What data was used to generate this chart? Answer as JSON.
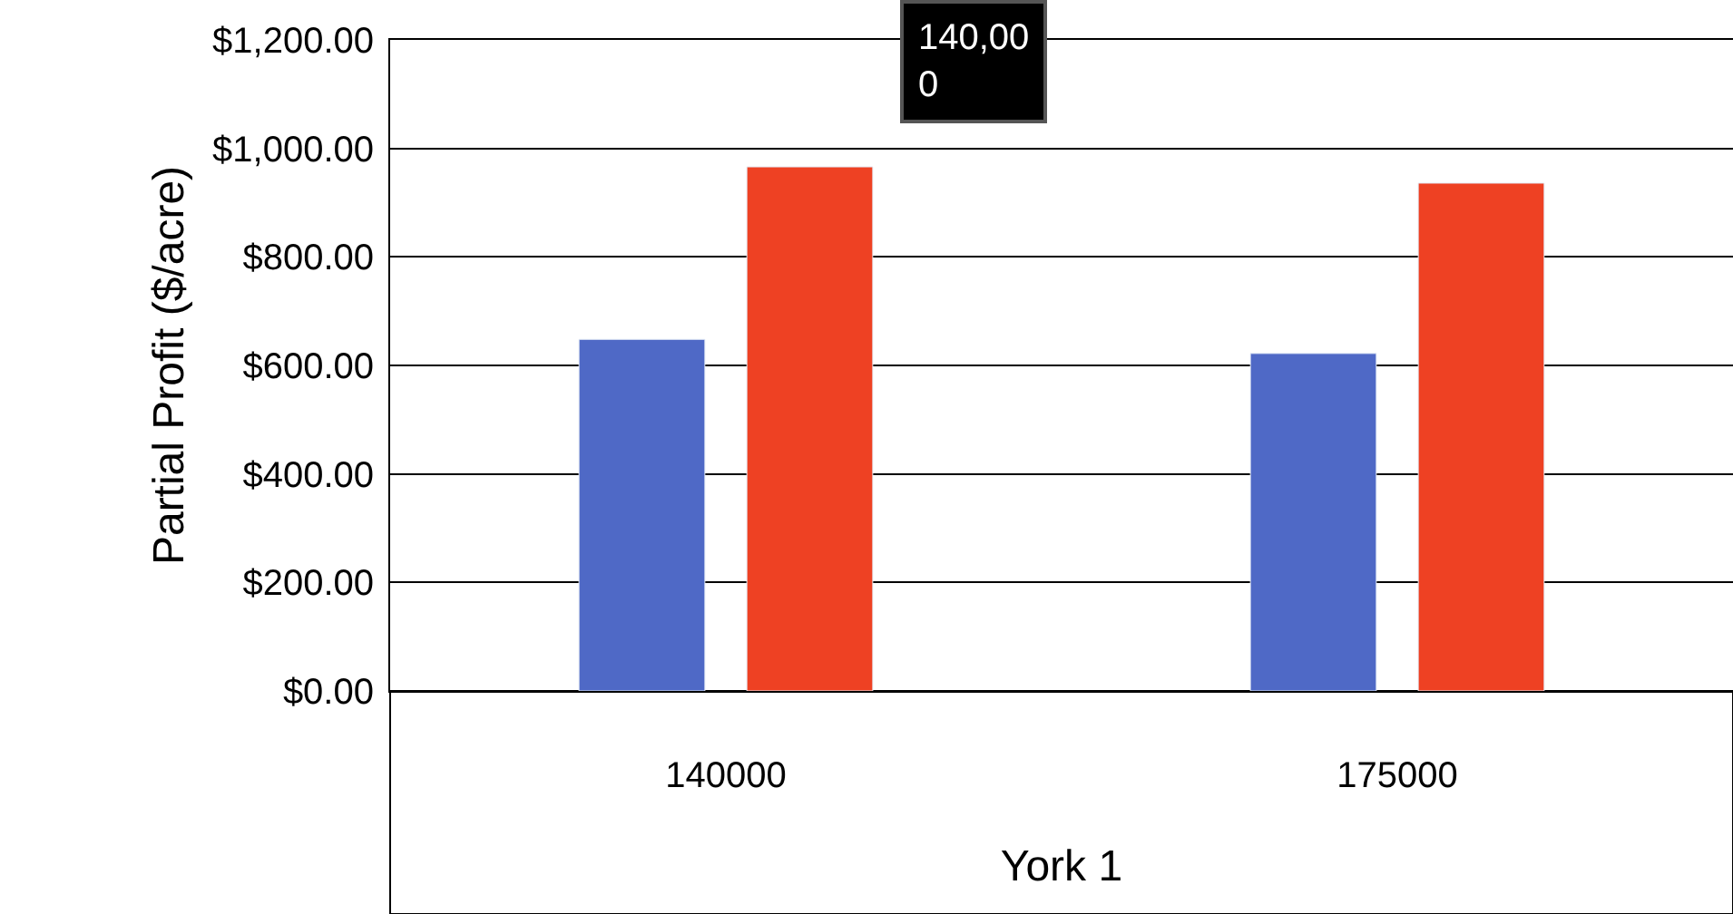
{
  "chart_data": {
    "type": "bar",
    "xlabel": "York 1",
    "ylabel": "Partial Profit ($/acre)",
    "categories": [
      "140000",
      "175000"
    ],
    "series": [
      {
        "color": "#4f69c6",
        "values": [
          648,
          622
        ]
      },
      {
        "color": "#ee4123",
        "values": [
          966,
          936
        ]
      }
    ],
    "ylim": [
      0,
      1200
    ],
    "yticks": [
      {
        "value": 0,
        "label": "$0.00"
      },
      {
        "value": 200,
        "label": "$200.00"
      },
      {
        "value": 400,
        "label": "$400.00"
      },
      {
        "value": 600,
        "label": "$600.00"
      },
      {
        "value": 800,
        "label": "$800.00"
      },
      {
        "value": 1000,
        "label": "$1,000.00"
      },
      {
        "value": 1200,
        "label": "$1,200.00"
      }
    ],
    "grid": "y",
    "annotations": [
      "140,00\n0"
    ]
  }
}
